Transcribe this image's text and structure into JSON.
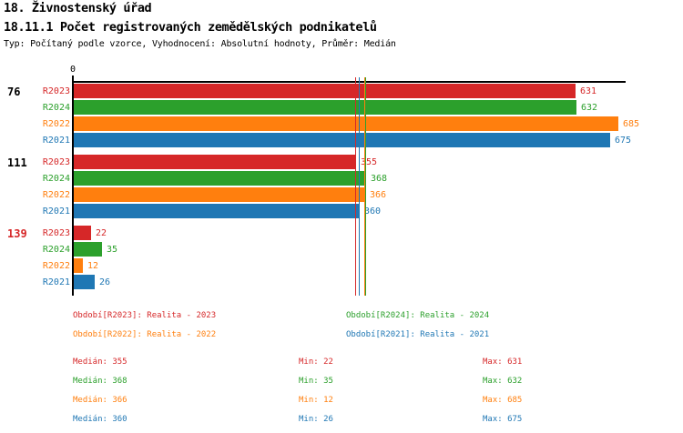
{
  "header": {
    "title": "18. Živnostenský úřad",
    "subtitle": "18.11.1 Počet registrovaných zemědělských podnikatelů",
    "meta": "Typ: Počítaný podle vzorce, Vyhodnocení: Absolutní hodnoty, Průměr: Medián"
  },
  "palette": {
    "R2023": "#d62728",
    "R2024": "#2ca02c",
    "R2022": "#ff7f0e",
    "R2021": "#1f77b4",
    "axis": "#000000"
  },
  "chart_data": {
    "type": "bar",
    "orientation": "horizontal",
    "x_axis": {
      "origin_label": "0",
      "min": 0,
      "max_extent": 695,
      "gridlines": false
    },
    "series_order": [
      "R2023",
      "R2024",
      "R2022",
      "R2021"
    ],
    "groups": [
      {
        "label": "76",
        "label_color": "#000000",
        "values": {
          "R2023": 631,
          "R2024": 632,
          "R2022": 685,
          "R2021": 675
        }
      },
      {
        "label": "111",
        "label_color": "#000000",
        "values": {
          "R2023": 355,
          "R2024": 368,
          "R2022": 366,
          "R2021": 360
        }
      },
      {
        "label": "139",
        "label_color": "#d62728",
        "values": {
          "R2023": 22,
          "R2024": 35,
          "R2022": 12,
          "R2021": 26
        }
      }
    ],
    "median_lines": {
      "R2023": 355,
      "R2024": 368,
      "R2022": 366,
      "R2021": 360
    }
  },
  "legend": {
    "items": [
      {
        "series": "R2023",
        "label": "Období[R2023]: Realita - 2023"
      },
      {
        "series": "R2024",
        "label": "Období[R2024]: Realita - 2024"
      },
      {
        "series": "R2022",
        "label": "Období[R2022]: Realita - 2022"
      },
      {
        "series": "R2021",
        "label": "Období[R2021]: Realita - 2021"
      }
    ]
  },
  "stats": {
    "median_label": "Medián",
    "min_label": "Min",
    "max_label": "Max",
    "rows": [
      {
        "series": "R2023",
        "median": 355,
        "min": 22,
        "max": 631
      },
      {
        "series": "R2024",
        "median": 368,
        "min": 35,
        "max": 632
      },
      {
        "series": "R2022",
        "median": 366,
        "min": 12,
        "max": 685
      },
      {
        "series": "R2021",
        "median": 360,
        "min": 26,
        "max": 675
      }
    ]
  }
}
